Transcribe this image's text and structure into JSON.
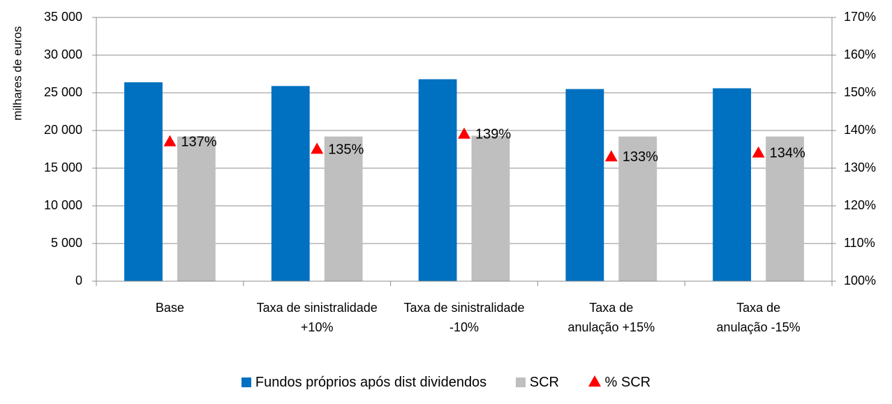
{
  "chart_data": {
    "type": "bar",
    "ylabel": "milhares de euros",
    "ylim": [
      0,
      35000
    ],
    "yticks": [
      "0",
      "5 000",
      "10 000",
      "15 000",
      "20 000",
      "25 000",
      "30 000",
      "35 000"
    ],
    "y2lim": [
      1.0,
      1.7
    ],
    "y2ticks": [
      "100%",
      "110%",
      "120%",
      "130%",
      "140%",
      "150%",
      "160%",
      "170%"
    ],
    "grid": true,
    "legend_position": "bottom",
    "categories": [
      [
        "Base"
      ],
      [
        "Taxa de sinistralidade",
        "+10%"
      ],
      [
        "Taxa de sinistralidade",
        "-10%"
      ],
      [
        "Taxa de",
        "anulação +15%"
      ],
      [
        "Taxa de",
        "anulação -15%"
      ]
    ],
    "series": [
      {
        "name": "Fundos próprios após dist dividendos",
        "type": "bar",
        "axis": "left",
        "color": "#0070c0",
        "values": [
          26400,
          25900,
          26800,
          25500,
          25600
        ]
      },
      {
        "name": "SCR",
        "type": "bar",
        "axis": "left",
        "color": "#bfbfbf",
        "values": [
          19200,
          19200,
          19300,
          19200,
          19200
        ]
      },
      {
        "name": "% SCR",
        "type": "scatter",
        "axis": "right",
        "marker": "triangle",
        "color": "#ff0000",
        "values": [
          1.37,
          1.35,
          1.39,
          1.33,
          1.34
        ],
        "labels": [
          "137%",
          "135%",
          "139%",
          "133%",
          "134%"
        ]
      }
    ]
  }
}
